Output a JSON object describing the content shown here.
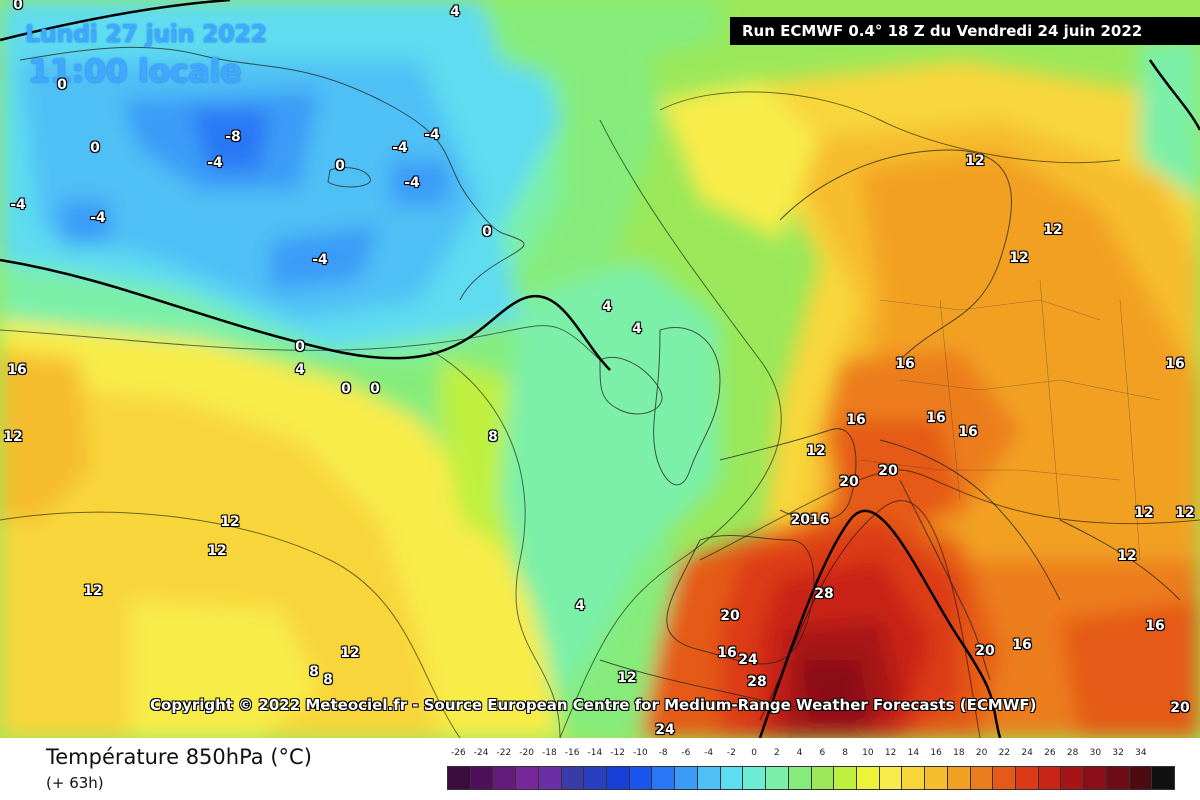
{
  "header": {
    "date": "Lundi 27 juin 2022",
    "time": "11:00 locale",
    "run": "Run ECMWF 0.4° 18 Z du Vendredi 24 juin 2022"
  },
  "copyright": "Copyright © 2022 Meteociel.fr - Source European Centre for Medium-Range Weather Forecasts (ECMWF)",
  "legend": {
    "title": "Température 850hPa (°C)",
    "subtitle": "(+ 63h)",
    "ticks": [
      "-26",
      "-24",
      "-22",
      "-20",
      "-18",
      "-16",
      "-14",
      "-12",
      "-10",
      "-8",
      "-6",
      "-4",
      "-2",
      "0",
      "2",
      "4",
      "6",
      "8",
      "10",
      "12",
      "14",
      "16",
      "18",
      "20",
      "22",
      "24",
      "26",
      "28",
      "30",
      "32",
      "34"
    ],
    "colors": [
      "#3a0d3e",
      "#4f0f5a",
      "#641b7a",
      "#76289a",
      "#6a2fa6",
      "#3a3aa8",
      "#2a3fc0",
      "#1740d8",
      "#1a55ef",
      "#2a77f5",
      "#3b9cf7",
      "#4fc0f5",
      "#5edcf0",
      "#6cecd2",
      "#7cf0a8",
      "#85ec7c",
      "#9ae85a",
      "#bff03f",
      "#ecf43a",
      "#f8ec4a",
      "#f8d63a",
      "#f6bd2e",
      "#f2a022",
      "#ec7d1c",
      "#e55a18",
      "#dc3a16",
      "#c92415",
      "#a71417",
      "#8a0f18",
      "#6e0c16",
      "#4d0a10",
      "#111111"
    ]
  },
  "map": {
    "iso_labels": [
      {
        "v": "-8",
        "id": "greenland-min-8"
      },
      {
        "v": "-4",
        "id": "greenland-w-4"
      },
      {
        "v": "-4",
        "id": "greenland-sw-4"
      },
      {
        "v": "-4",
        "id": "greenland-c-4"
      },
      {
        "v": "-4",
        "id": "greenland-e-4a"
      },
      {
        "v": "-4",
        "id": "greenland-e-4b"
      },
      {
        "v": "-4",
        "id": "greenland-se-4"
      },
      {
        "v": "-4",
        "id": "iceland-w-4"
      },
      {
        "v": "0",
        "id": "greenland-0-a"
      },
      {
        "v": "0",
        "id": "greenland-0-b"
      },
      {
        "v": "0",
        "id": "greenland-0-c"
      },
      {
        "v": "0",
        "id": "iceland-0"
      },
      {
        "v": "0",
        "id": "atl-0-a"
      },
      {
        "v": "0",
        "id": "atl-0-b"
      },
      {
        "v": "0",
        "id": "atl-0-c"
      },
      {
        "v": "0",
        "id": "arctic-0"
      },
      {
        "v": "4",
        "id": "arctic-4"
      },
      {
        "v": "4",
        "id": "atl-4-a"
      },
      {
        "v": "4",
        "id": "uk-4-a"
      },
      {
        "v": "4",
        "id": "uk-4-b"
      },
      {
        "v": "4",
        "id": "iberia-4"
      },
      {
        "v": "8",
        "id": "atl-8"
      },
      {
        "v": "8",
        "id": "azores-8-a"
      },
      {
        "v": "8",
        "id": "azores-8-b"
      },
      {
        "v": "12",
        "id": "atl-12-a"
      },
      {
        "v": "12",
        "id": "atl-12-b"
      },
      {
        "v": "12",
        "id": "atl-12-c"
      },
      {
        "v": "12",
        "id": "atl-12-d"
      },
      {
        "v": "12",
        "id": "atl-12-e"
      },
      {
        "v": "12",
        "id": "portugal-12"
      },
      {
        "v": "12",
        "id": "france-12"
      },
      {
        "v": "12",
        "id": "scand-12-a"
      },
      {
        "v": "12",
        "id": "scand-12-b"
      },
      {
        "v": "12",
        "id": "scand-12-c"
      },
      {
        "v": "12",
        "id": "balkan-12-a"
      },
      {
        "v": "12",
        "id": "balkan-12-b"
      },
      {
        "v": "12",
        "id": "balkan-12-c"
      },
      {
        "v": "16",
        "id": "atl-16"
      },
      {
        "v": "16",
        "id": "germany-16-a"
      },
      {
        "v": "16",
        "id": "germany-16-b"
      },
      {
        "v": "16",
        "id": "poland-16-a"
      },
      {
        "v": "16",
        "id": "poland-16-b"
      },
      {
        "v": "16",
        "id": "east-16"
      },
      {
        "v": "16",
        "id": "balkan-16-a"
      },
      {
        "v": "16",
        "id": "balkan-16-b"
      },
      {
        "v": "16",
        "id": "spain-16"
      },
      {
        "v": "2016",
        "id": "france-2016"
      },
      {
        "v": "20",
        "id": "france-20-a"
      },
      {
        "v": "20",
        "id": "france-20-b"
      },
      {
        "v": "20",
        "id": "spain-20"
      },
      {
        "v": "20",
        "id": "italy-20"
      },
      {
        "v": "20",
        "id": "se-20"
      },
      {
        "v": "24",
        "id": "spain-24-a"
      },
      {
        "v": "24",
        "id": "spain-24-b"
      },
      {
        "v": "28",
        "id": "med-28-a"
      },
      {
        "v": "28",
        "id": "med-28-b"
      }
    ]
  }
}
